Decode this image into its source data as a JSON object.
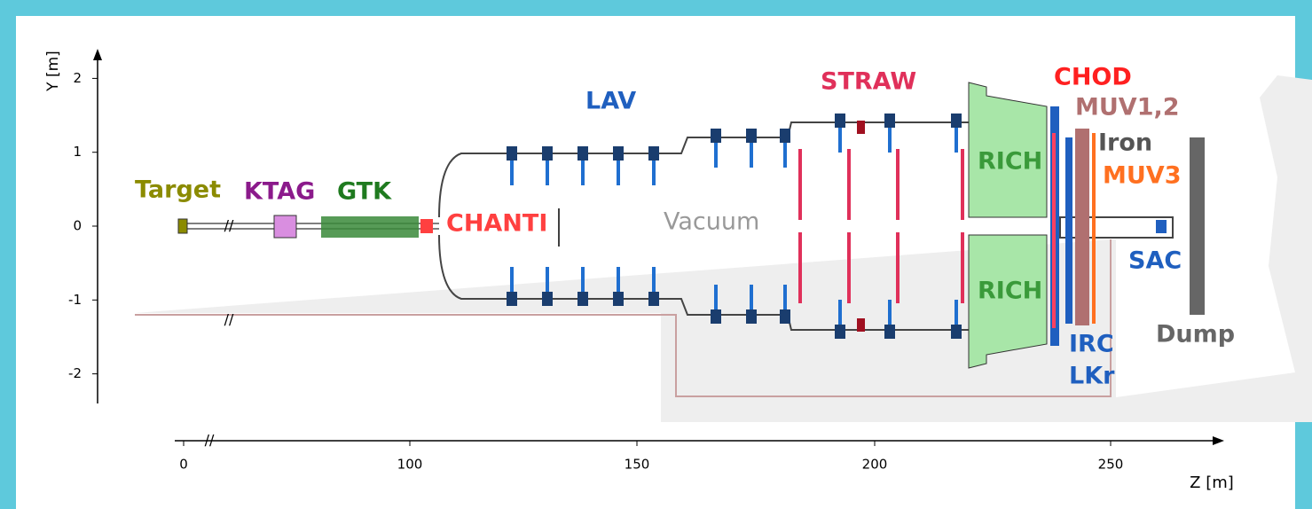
{
  "axes": {
    "y": {
      "label": "Y [m]",
      "ticks": [
        2,
        1,
        0,
        -1,
        -2
      ]
    },
    "z": {
      "label": "Z [m]",
      "ticks": [
        0,
        100,
        150,
        200,
        250
      ]
    }
  },
  "labels": [
    "Target",
    "KTAG",
    "GTK",
    "CHANTI",
    "LAV",
    "Vacuum",
    "STRAW",
    "CHOD",
    "MUV1,2",
    "Iron",
    "MUV3",
    "RICH",
    "RICH",
    "SAC",
    "IRC",
    "LKr",
    "Dump"
  ]
}
